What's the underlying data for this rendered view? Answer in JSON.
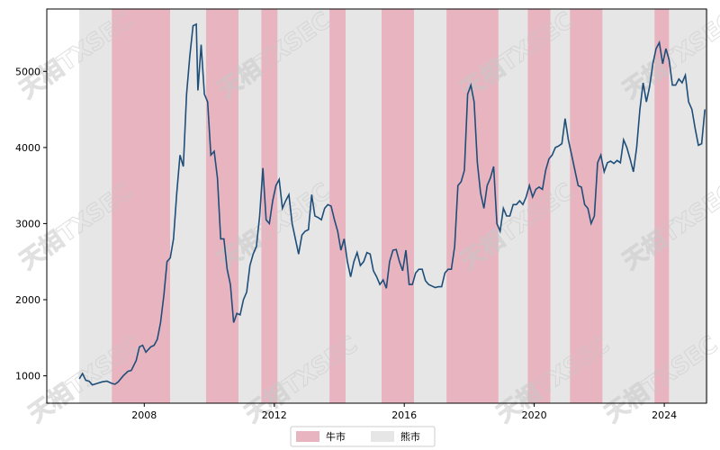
{
  "chart_data": {
    "type": "line",
    "xlabel": "",
    "ylabel": "",
    "x_ticks": [
      "2008",
      "2012",
      "2016",
      "2020",
      "2024"
    ],
    "y_ticks": [
      1000,
      2000,
      3000,
      4000,
      5000
    ],
    "xlim": [
      2005.0,
      2025.3
    ],
    "ylim": [
      640,
      5820
    ],
    "legend_position": "bottom-center",
    "legend": [
      {
        "name": "牛市",
        "color": "#e8b4c0"
      },
      {
        "name": "熊市",
        "color": "#e6e6e6"
      }
    ],
    "line_color": "#1f4e79",
    "regions": [
      {
        "type": "bear",
        "start": 2006.0,
        "end": 2007.0
      },
      {
        "type": "bull",
        "start": 2007.0,
        "end": 2008.8
      },
      {
        "type": "bear",
        "start": 2008.8,
        "end": 2009.9
      },
      {
        "type": "bull",
        "start": 2009.9,
        "end": 2010.9
      },
      {
        "type": "bear",
        "start": 2010.9,
        "end": 2011.6
      },
      {
        "type": "bull",
        "start": 2011.6,
        "end": 2012.1
      },
      {
        "type": "bear",
        "start": 2012.1,
        "end": 2013.7
      },
      {
        "type": "bull",
        "start": 2013.7,
        "end": 2014.2
      },
      {
        "type": "bear",
        "start": 2014.2,
        "end": 2015.3
      },
      {
        "type": "bull",
        "start": 2015.3,
        "end": 2016.3
      },
      {
        "type": "bear",
        "start": 2016.3,
        "end": 2017.3
      },
      {
        "type": "bull",
        "start": 2017.3,
        "end": 2018.9
      },
      {
        "type": "bear",
        "start": 2018.9,
        "end": 2019.8
      },
      {
        "type": "bull",
        "start": 2019.8,
        "end": 2020.5
      },
      {
        "type": "bear",
        "start": 2020.5,
        "end": 2021.1
      },
      {
        "type": "bull",
        "start": 2021.1,
        "end": 2022.1
      },
      {
        "type": "bear",
        "start": 2022.1,
        "end": 2023.7
      },
      {
        "type": "bull",
        "start": 2023.7,
        "end": 2024.15
      },
      {
        "type": "bear",
        "start": 2024.15,
        "end": 2025.35
      }
    ],
    "series": [
      {
        "points": [
          [
            2006.0,
            960
          ],
          [
            2006.1,
            1030
          ],
          [
            2006.2,
            940
          ],
          [
            2006.3,
            930
          ],
          [
            2006.4,
            880
          ],
          [
            2006.55,
            900
          ],
          [
            2006.7,
            920
          ],
          [
            2006.85,
            930
          ],
          [
            2007.0,
            900
          ],
          [
            2007.1,
            890
          ],
          [
            2007.2,
            920
          ],
          [
            2007.35,
            1000
          ],
          [
            2007.5,
            1060
          ],
          [
            2007.6,
            1070
          ],
          [
            2007.75,
            1200
          ],
          [
            2007.85,
            1380
          ],
          [
            2007.95,
            1400
          ],
          [
            2008.05,
            1310
          ],
          [
            2008.2,
            1380
          ],
          [
            2008.3,
            1400
          ],
          [
            2008.4,
            1480
          ],
          [
            2008.5,
            1700
          ],
          [
            2008.6,
            2050
          ],
          [
            2008.7,
            2500
          ],
          [
            2008.8,
            2550
          ],
          [
            2008.9,
            2800
          ],
          [
            2009.0,
            3400
          ],
          [
            2009.1,
            3900
          ],
          [
            2009.2,
            3750
          ],
          [
            2009.3,
            4700
          ],
          [
            2009.4,
            5200
          ],
          [
            2009.5,
            5600
          ],
          [
            2009.6,
            5620
          ],
          [
            2009.65,
            4750
          ],
          [
            2009.75,
            5350
          ],
          [
            2009.85,
            4700
          ],
          [
            2009.95,
            4600
          ],
          [
            2010.05,
            3900
          ],
          [
            2010.15,
            3950
          ],
          [
            2010.25,
            3600
          ],
          [
            2010.35,
            2800
          ],
          [
            2010.45,
            2800
          ],
          [
            2010.55,
            2400
          ],
          [
            2010.65,
            2200
          ],
          [
            2010.75,
            1700
          ],
          [
            2010.85,
            1820
          ],
          [
            2010.95,
            1800
          ],
          [
            2011.05,
            2000
          ],
          [
            2011.15,
            2100
          ],
          [
            2011.25,
            2450
          ],
          [
            2011.35,
            2600
          ],
          [
            2011.45,
            2700
          ],
          [
            2011.55,
            3100
          ],
          [
            2011.65,
            3730
          ],
          [
            2011.75,
            3050
          ],
          [
            2011.85,
            3000
          ],
          [
            2011.95,
            3300
          ],
          [
            2012.05,
            3500
          ],
          [
            2012.15,
            3580
          ],
          [
            2012.25,
            3200
          ],
          [
            2012.35,
            3300
          ],
          [
            2012.45,
            3380
          ],
          [
            2012.55,
            3000
          ],
          [
            2012.65,
            2800
          ],
          [
            2012.75,
            2600
          ],
          [
            2012.85,
            2850
          ],
          [
            2012.95,
            2900
          ],
          [
            2013.05,
            2920
          ],
          [
            2013.15,
            3380
          ],
          [
            2013.25,
            3100
          ],
          [
            2013.35,
            3080
          ],
          [
            2013.45,
            3050
          ],
          [
            2013.55,
            3200
          ],
          [
            2013.65,
            3250
          ],
          [
            2013.75,
            3230
          ],
          [
            2013.85,
            3050
          ],
          [
            2013.95,
            2900
          ],
          [
            2014.05,
            2650
          ],
          [
            2014.15,
            2800
          ],
          [
            2014.25,
            2500
          ],
          [
            2014.35,
            2300
          ],
          [
            2014.45,
            2500
          ],
          [
            2014.55,
            2620
          ],
          [
            2014.65,
            2450
          ],
          [
            2014.75,
            2500
          ],
          [
            2014.85,
            2620
          ],
          [
            2014.95,
            2600
          ],
          [
            2015.05,
            2380
          ],
          [
            2015.15,
            2300
          ],
          [
            2015.25,
            2200
          ],
          [
            2015.35,
            2260
          ],
          [
            2015.45,
            2150
          ],
          [
            2015.55,
            2500
          ],
          [
            2015.65,
            2650
          ],
          [
            2015.75,
            2660
          ],
          [
            2015.85,
            2500
          ],
          [
            2015.95,
            2380
          ],
          [
            2016.05,
            2650
          ],
          [
            2016.15,
            2200
          ],
          [
            2016.25,
            2200
          ],
          [
            2016.35,
            2350
          ],
          [
            2016.45,
            2400
          ],
          [
            2016.55,
            2400
          ],
          [
            2016.65,
            2250
          ],
          [
            2016.75,
            2200
          ],
          [
            2016.85,
            2180
          ],
          [
            2016.95,
            2160
          ],
          [
            2017.05,
            2170
          ],
          [
            2017.15,
            2170
          ],
          [
            2017.25,
            2350
          ],
          [
            2017.35,
            2400
          ],
          [
            2017.45,
            2400
          ],
          [
            2017.55,
            2700
          ],
          [
            2017.65,
            3500
          ],
          [
            2017.75,
            3550
          ],
          [
            2017.85,
            3700
          ],
          [
            2017.95,
            4700
          ],
          [
            2018.05,
            4820
          ],
          [
            2018.15,
            4600
          ],
          [
            2018.25,
            3800
          ],
          [
            2018.35,
            3400
          ],
          [
            2018.45,
            3200
          ],
          [
            2018.55,
            3500
          ],
          [
            2018.65,
            3600
          ],
          [
            2018.75,
            3750
          ],
          [
            2018.85,
            3000
          ],
          [
            2018.95,
            2900
          ],
          [
            2019.05,
            3200
          ],
          [
            2019.15,
            3100
          ],
          [
            2019.25,
            3100
          ],
          [
            2019.35,
            3250
          ],
          [
            2019.45,
            3250
          ],
          [
            2019.55,
            3300
          ],
          [
            2019.65,
            3250
          ],
          [
            2019.75,
            3350
          ],
          [
            2019.85,
            3500
          ],
          [
            2019.95,
            3350
          ],
          [
            2020.05,
            3450
          ],
          [
            2020.15,
            3480
          ],
          [
            2020.25,
            3450
          ],
          [
            2020.35,
            3700
          ],
          [
            2020.45,
            3850
          ],
          [
            2020.55,
            3900
          ],
          [
            2020.65,
            4000
          ],
          [
            2020.75,
            4020
          ],
          [
            2020.85,
            4050
          ],
          [
            2020.95,
            4380
          ],
          [
            2021.05,
            4100
          ],
          [
            2021.15,
            3900
          ],
          [
            2021.25,
            3700
          ],
          [
            2021.35,
            3500
          ],
          [
            2021.45,
            3480
          ],
          [
            2021.55,
            3250
          ],
          [
            2021.65,
            3200
          ],
          [
            2021.75,
            3000
          ],
          [
            2021.85,
            3100
          ],
          [
            2021.95,
            3800
          ],
          [
            2022.05,
            3900
          ],
          [
            2022.15,
            3680
          ],
          [
            2022.25,
            3800
          ],
          [
            2022.35,
            3820
          ],
          [
            2022.45,
            3790
          ],
          [
            2022.55,
            3830
          ],
          [
            2022.65,
            3800
          ],
          [
            2022.75,
            4100
          ],
          [
            2022.85,
            4000
          ],
          [
            2022.95,
            3850
          ],
          [
            2023.05,
            3680
          ],
          [
            2023.15,
            4000
          ],
          [
            2023.25,
            4500
          ],
          [
            2023.35,
            4850
          ],
          [
            2023.45,
            4600
          ],
          [
            2023.55,
            4800
          ],
          [
            2023.65,
            5100
          ],
          [
            2023.75,
            5300
          ],
          [
            2023.85,
            5380
          ],
          [
            2023.95,
            5100
          ],
          [
            2024.05,
            5300
          ],
          [
            2024.15,
            5150
          ],
          [
            2024.25,
            4820
          ],
          [
            2024.35,
            4820
          ],
          [
            2024.45,
            4900
          ],
          [
            2024.55,
            4850
          ],
          [
            2024.65,
            4950
          ],
          [
            2024.75,
            4600
          ],
          [
            2024.85,
            4500
          ],
          [
            2024.95,
            4250
          ],
          [
            2025.05,
            4030
          ],
          [
            2025.15,
            4050
          ],
          [
            2025.25,
            4500
          ]
        ]
      }
    ]
  },
  "watermark_text": "天相TXSEC"
}
